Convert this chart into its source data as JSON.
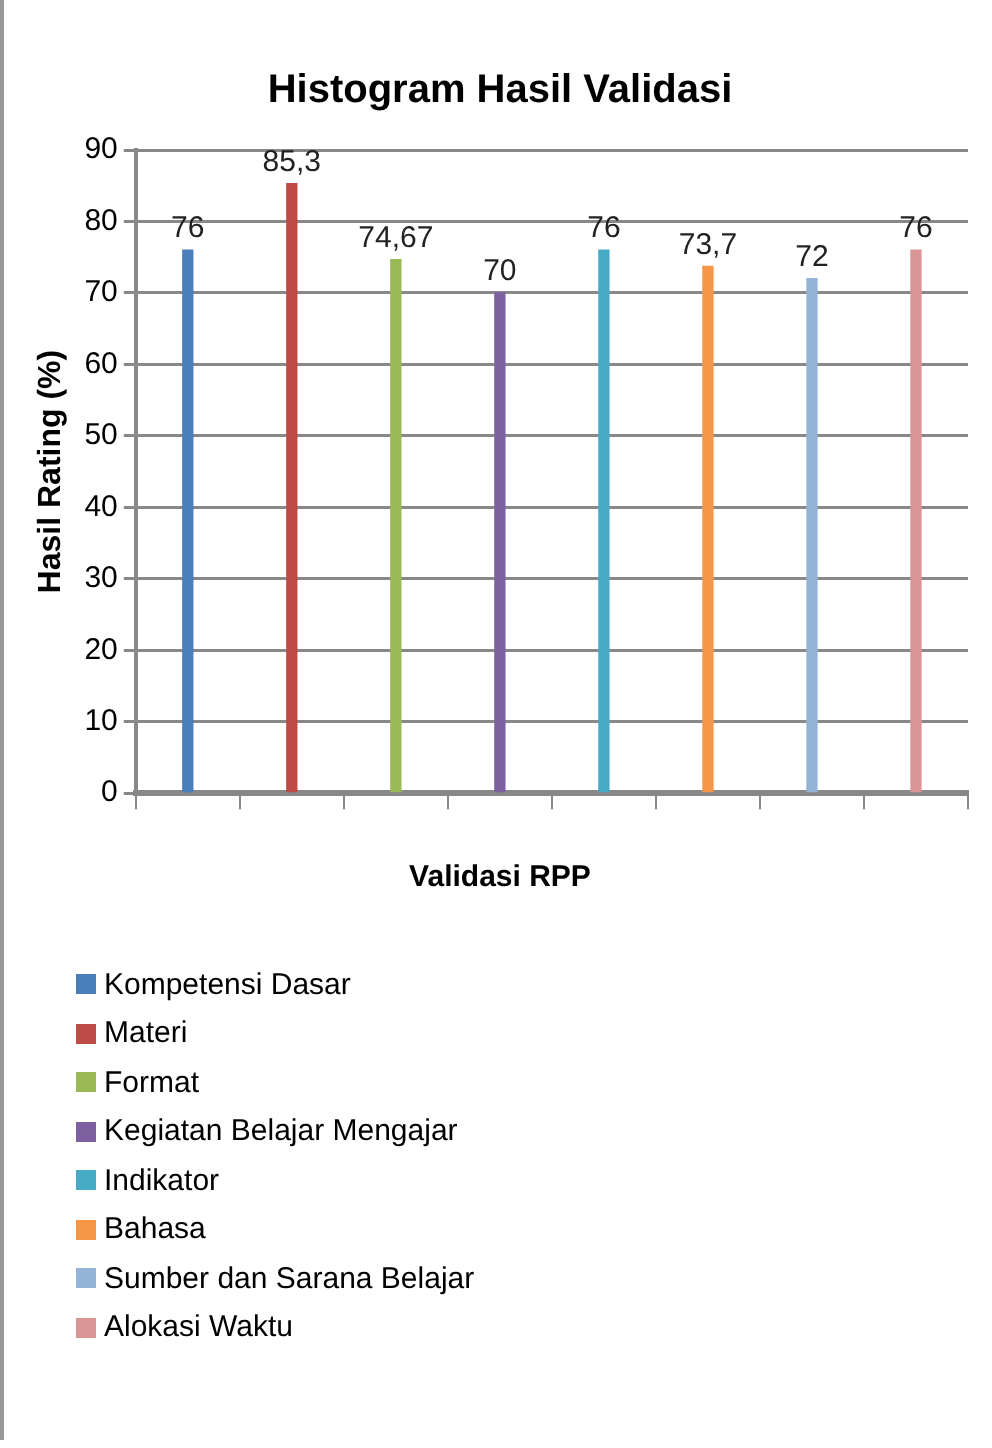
{
  "chart_data": {
    "type": "bar",
    "title": "Histogram Hasil Validasi",
    "xlabel": "Validasi RPP",
    "ylabel": "Hasil Rating (%)",
    "categories": [
      null,
      null,
      null,
      null,
      null,
      null,
      null,
      null
    ],
    "series": [
      {
        "name": "Kompetensi Dasar",
        "color": "#4a7ebb",
        "values": [
          76,
          null,
          null,
          null,
          null,
          null,
          null,
          null
        ],
        "value_labels": [
          "76",
          null,
          null,
          null,
          null,
          null,
          null,
          null
        ]
      },
      {
        "name": "Materi",
        "color": "#be4b48",
        "values": [
          null,
          85.3,
          null,
          null,
          null,
          null,
          null,
          null
        ],
        "value_labels": [
          null,
          "85,3",
          null,
          null,
          null,
          null,
          null,
          null
        ]
      },
      {
        "name": "Format",
        "color": "#98b954",
        "values": [
          null,
          null,
          74.67,
          null,
          null,
          null,
          null,
          null
        ],
        "value_labels": [
          null,
          null,
          "74,67",
          null,
          null,
          null,
          null,
          null
        ]
      },
      {
        "name": "Kegiatan Belajar Mengajar",
        "color": "#7d60a0",
        "values": [
          null,
          null,
          null,
          70,
          null,
          null,
          null,
          null
        ],
        "value_labels": [
          null,
          null,
          null,
          "70",
          null,
          null,
          null,
          null
        ]
      },
      {
        "name": "Indikator",
        "color": "#46aac5",
        "values": [
          null,
          null,
          null,
          null,
          76,
          null,
          null,
          null
        ],
        "value_labels": [
          null,
          null,
          null,
          null,
          "76",
          null,
          null,
          null
        ]
      },
      {
        "name": "Bahasa",
        "color": "#f79646",
        "values": [
          null,
          null,
          null,
          null,
          null,
          73.7,
          null,
          null
        ],
        "value_labels": [
          null,
          null,
          null,
          null,
          null,
          "73,7",
          null,
          null
        ]
      },
      {
        "name": "Sumber dan Sarana Belajar",
        "color": "#95b3d7",
        "values": [
          null,
          null,
          null,
          null,
          null,
          null,
          72,
          null
        ],
        "value_labels": [
          null,
          null,
          null,
          null,
          null,
          null,
          "72",
          null
        ]
      },
      {
        "name": "Alokasi Waktu",
        "color": "#d99694",
        "values": [
          null,
          null,
          null,
          null,
          null,
          null,
          null,
          76
        ],
        "value_labels": [
          null,
          null,
          null,
          null,
          null,
          null,
          null,
          "76"
        ]
      }
    ],
    "ylim": [
      0,
      90
    ],
    "yticks": [
      0,
      10,
      20,
      30,
      40,
      50,
      60,
      70,
      80,
      90
    ],
    "grid": "y",
    "legend": "bottom"
  }
}
